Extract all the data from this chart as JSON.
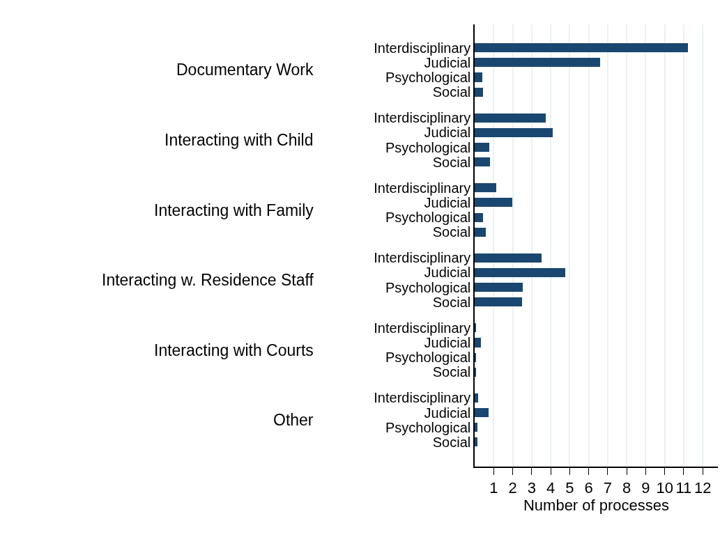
{
  "chart_data": {
    "type": "bar",
    "orientation": "horizontal",
    "xlabel": "Number of processes",
    "categories": [
      "Interdisciplinary",
      "Judicial",
      "Psychological",
      "Social",
      "Interdisciplinary",
      "Judicial",
      "Psychological",
      "Social",
      "Interdisciplinary",
      "Judicial",
      "Psychological",
      "Social",
      "Interdisciplinary",
      "Judicial",
      "Psychological",
      "Social",
      "Interdisciplinary",
      "Judicial",
      "Psychological",
      "Social",
      "Interdisciplinary",
      "Judicial",
      "Psychological",
      "Social"
    ],
    "values": [
      11.24,
      6.6,
      0.39,
      0.43,
      3.75,
      4.1,
      0.76,
      0.8,
      1.14,
      1.99,
      0.43,
      0.58,
      3.53,
      4.77,
      2.52,
      2.49,
      0.05,
      0.33,
      0.05,
      0.05,
      0.17,
      0.74,
      0.13,
      0.13
    ],
    "color": "#1a476f",
    "annotations": [
      "Documentary Work",
      "Interacting with Child",
      "Interacting with Family",
      "Interacting w. Residence Staff",
      "Interacting with Courts",
      "Other"
    ],
    "xlim": [
      0,
      12.8
    ],
    "xticks": [
      1,
      2,
      3,
      4,
      5,
      6,
      7,
      8,
      9,
      10,
      11,
      12
    ],
    "grid": "x"
  }
}
